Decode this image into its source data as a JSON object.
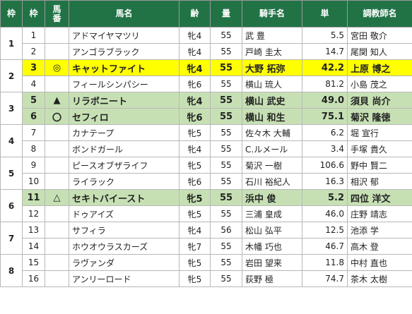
{
  "headers": {
    "frame": "枠",
    "num": "枠",
    "horse_num": "馬\n番",
    "name": "馬名",
    "age": "齢",
    "weight": "量",
    "jockey": "騎手名",
    "odds": "単",
    "trainer": "調教師名"
  },
  "colors": {
    "header_bg": "#217346",
    "highlight_yellow": "#ffff00",
    "highlight_green": "#c6e0b4"
  },
  "frames": [
    {
      "label": "1"
    },
    {
      "label": "2"
    },
    {
      "label": "3"
    },
    {
      "label": "4"
    },
    {
      "label": "5"
    },
    {
      "label": "6"
    },
    {
      "label": "7"
    },
    {
      "label": "8"
    }
  ],
  "rows": [
    {
      "num": "1",
      "mark": "",
      "name": "アドマイヤマツリ",
      "age": "牝4",
      "weight": "55",
      "jockey": "武 豊",
      "odds": "5.5",
      "trainer": "宮田 敬介"
    },
    {
      "num": "2",
      "mark": "",
      "name": "アンゴラブラック",
      "age": "牝4",
      "weight": "55",
      "jockey": "戸崎 圭太",
      "odds": "14.7",
      "trainer": "尾関 知人"
    },
    {
      "num": "3",
      "mark": "◎",
      "name": "キャットファイト",
      "age": "牝4",
      "weight": "55",
      "jockey": "大野 拓弥",
      "odds": "42.2",
      "trainer": "上原 博之"
    },
    {
      "num": "4",
      "mark": "",
      "name": "フィールシンパシー",
      "age": "牝6",
      "weight": "55",
      "jockey": "横山 琉人",
      "odds": "81.2",
      "trainer": "小島 茂之"
    },
    {
      "num": "5",
      "mark": "▲",
      "name": "リラボニート",
      "age": "牝4",
      "weight": "55",
      "jockey": "横山 武史",
      "odds": "49.0",
      "trainer": "須貝 尚介"
    },
    {
      "num": "6",
      "mark": "〇",
      "name": "セフィロ",
      "age": "牝6",
      "weight": "55",
      "jockey": "横山 和生",
      "odds": "75.1",
      "trainer": "菊沢 隆徳"
    },
    {
      "num": "7",
      "mark": "",
      "name": "カナテープ",
      "age": "牝5",
      "weight": "55",
      "jockey": "佐々木 大輔",
      "odds": "6.2",
      "trainer": "堀 宣行"
    },
    {
      "num": "8",
      "mark": "",
      "name": "ボンドガール",
      "age": "牝4",
      "weight": "55",
      "jockey": "C.ルメール",
      "odds": "3.4",
      "trainer": "手塚 貴久"
    },
    {
      "num": "9",
      "mark": "",
      "name": "ピースオブザライフ",
      "age": "牝5",
      "weight": "55",
      "jockey": "菊沢 一樹",
      "odds": "106.6",
      "trainer": "野中 賢二"
    },
    {
      "num": "10",
      "mark": "",
      "name": "ライラック",
      "age": "牝6",
      "weight": "55",
      "jockey": "石川 裕紀人",
      "odds": "16.3",
      "trainer": "相沢 郁"
    },
    {
      "num": "11",
      "mark": "△",
      "name": "セキトバイースト",
      "age": "牝5",
      "weight": "55",
      "jockey": "浜中 俊",
      "odds": "5.2",
      "trainer": "四位 洋文"
    },
    {
      "num": "12",
      "mark": "",
      "name": "ドゥアイズ",
      "age": "牝5",
      "weight": "55",
      "jockey": "三浦 皇成",
      "odds": "46.0",
      "trainer": "庄野 靖志"
    },
    {
      "num": "13",
      "mark": "",
      "name": "サフィラ",
      "age": "牝4",
      "weight": "56",
      "jockey": "松山 弘平",
      "odds": "12.5",
      "trainer": "池添 学"
    },
    {
      "num": "14",
      "mark": "",
      "name": "ホウオウラスカーズ",
      "age": "牝7",
      "weight": "55",
      "jockey": "木幡 巧也",
      "odds": "46.7",
      "trainer": "高木 登"
    },
    {
      "num": "15",
      "mark": "",
      "name": "ラヴァンダ",
      "age": "牝5",
      "weight": "55",
      "jockey": "岩田 望来",
      "odds": "11.8",
      "trainer": "中村 直也"
    },
    {
      "num": "16",
      "mark": "",
      "name": "アンリーロード",
      "age": "牝5",
      "weight": "55",
      "jockey": "荻野 極",
      "odds": "74.7",
      "trainer": "茶木 太樹"
    }
  ]
}
